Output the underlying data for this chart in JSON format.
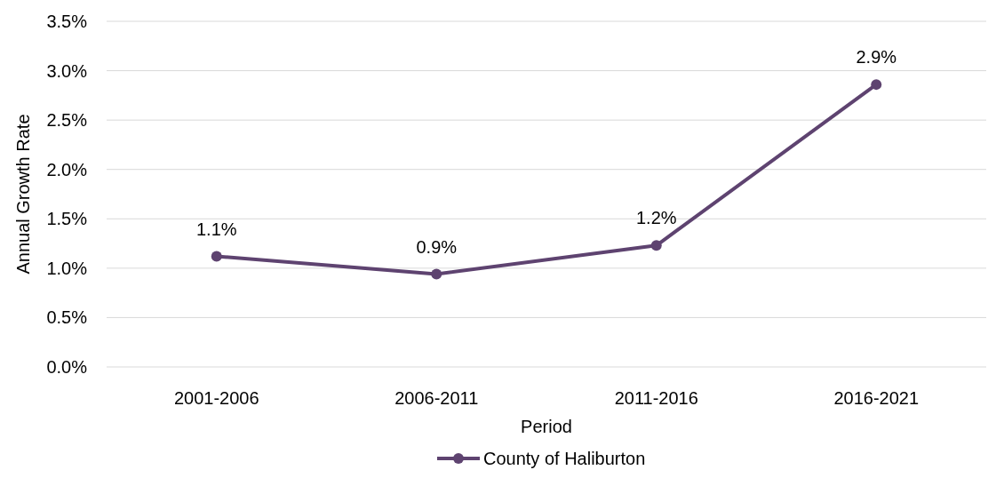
{
  "chart_data": {
    "type": "line",
    "xlabel": "Period",
    "ylabel": "Annual Growth Rate",
    "categories": [
      "2001-2006",
      "2006-2011",
      "2011-2016",
      "2016-2021"
    ],
    "series": [
      {
        "name": "County of Haliburton",
        "color": "#5e4370",
        "values": [
          1.12,
          0.94,
          1.23,
          2.86
        ],
        "value_labels": [
          "1.1%",
          "0.9%",
          "1.2%",
          "2.9%"
        ]
      }
    ],
    "ylim": [
      0,
      3.5
    ],
    "yticks": [
      {
        "value": 0,
        "label": "0.0%"
      },
      {
        "value": 0.5,
        "label": "0.5%"
      },
      {
        "value": 1,
        "label": "1.0%"
      },
      {
        "value": 1.5,
        "label": "1.5%"
      },
      {
        "value": 2,
        "label": "2.0%"
      },
      {
        "value": 2.5,
        "label": "2.5%"
      },
      {
        "value": 3,
        "label": "3.0%"
      },
      {
        "value": 3.5,
        "label": "3.5%"
      }
    ],
    "grid": "y",
    "legend": "bottom",
    "marker": "circle",
    "line_style": "solid"
  }
}
